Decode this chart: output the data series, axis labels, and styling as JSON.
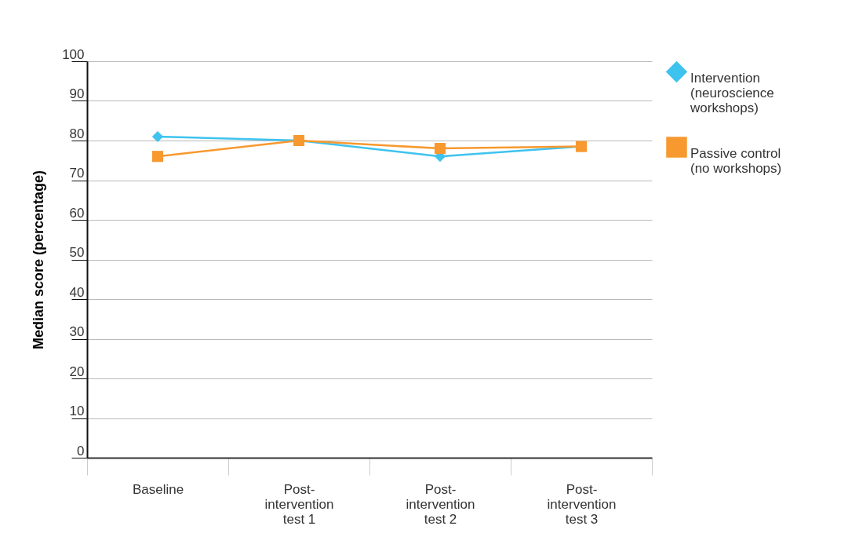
{
  "chart_data": {
    "type": "line",
    "ylabel": "Median score (percentage)",
    "categories": [
      "Baseline",
      "Post-\nintervention\ntest 1",
      "Post-\nintervention\ntest 2",
      "Post-\nintervention\ntest 3"
    ],
    "series": [
      {
        "name": "Intervention\n(neuroscience\nworkshops)",
        "color": "#3ec3ef",
        "marker": "diamond",
        "values": [
          81,
          80,
          76,
          78.5
        ]
      },
      {
        "name": "Passive control\n(no workshops)",
        "color": "#f7992f",
        "marker": "square",
        "values": [
          76,
          80,
          78,
          78.5
        ]
      }
    ],
    "ylim": [
      0,
      100
    ],
    "yticks": [
      0,
      10,
      20,
      30,
      40,
      50,
      60,
      70,
      80,
      90,
      100
    ],
    "grid": "y",
    "legend": "right",
    "line_style": "solid"
  }
}
